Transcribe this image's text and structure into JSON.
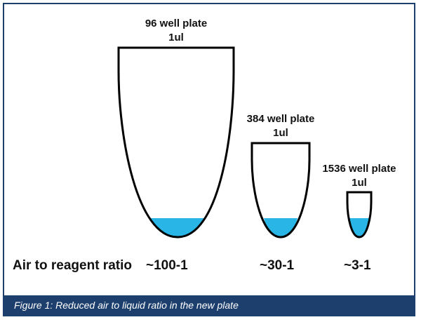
{
  "figure": {
    "frame_color": "#1d3f6e",
    "liquid_color": "#29b6e6",
    "outline_color": "#000000",
    "caption": "Figure 1: Reduced air to liquid ratio in the new plate"
  },
  "wells": [
    {
      "name": "96 well plate",
      "volume": "1ul",
      "ratio": "~100-1"
    },
    {
      "name": "384 well plate",
      "volume": "1ul",
      "ratio": "~30-1"
    },
    {
      "name": "1536 well plate",
      "volume": "1ul",
      "ratio": "~3-1"
    }
  ],
  "ratio_row": {
    "label": "Air to reagent ratio"
  }
}
